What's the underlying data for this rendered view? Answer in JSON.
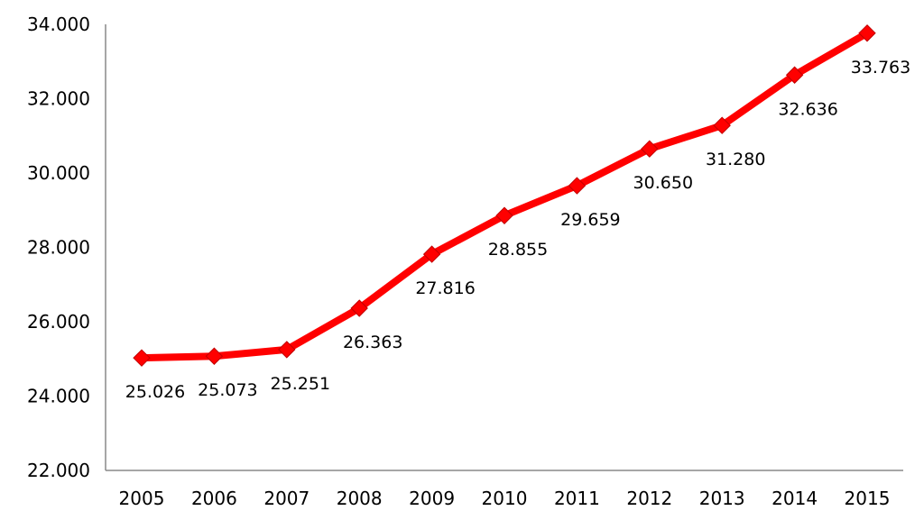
{
  "chart_data": {
    "type": "line",
    "title": "",
    "xlabel": "",
    "ylabel": "",
    "categories": [
      "2005",
      "2006",
      "2007",
      "2008",
      "2009",
      "2010",
      "2011",
      "2012",
      "2013",
      "2014",
      "2015"
    ],
    "series": [
      {
        "name": "",
        "color": "#ff0000",
        "values": [
          25026,
          25073,
          25251,
          26363,
          27816,
          28855,
          29659,
          30650,
          31280,
          32636,
          33763
        ],
        "labels": [
          "25.026",
          "25.073",
          "25.251",
          "26.363",
          "27.816",
          "28.855",
          "29.659",
          "30.650",
          "31.280",
          "32.636",
          "33.763"
        ]
      }
    ],
    "ylim": [
      22000,
      34000
    ],
    "yticks": [
      22000,
      24000,
      26000,
      28000,
      30000,
      32000,
      34000
    ],
    "ytick_labels": [
      "22.000",
      "24.000",
      "26.000",
      "28.000",
      "30.000",
      "32.000",
      "34.000"
    ],
    "grid": false,
    "legend": "none"
  }
}
